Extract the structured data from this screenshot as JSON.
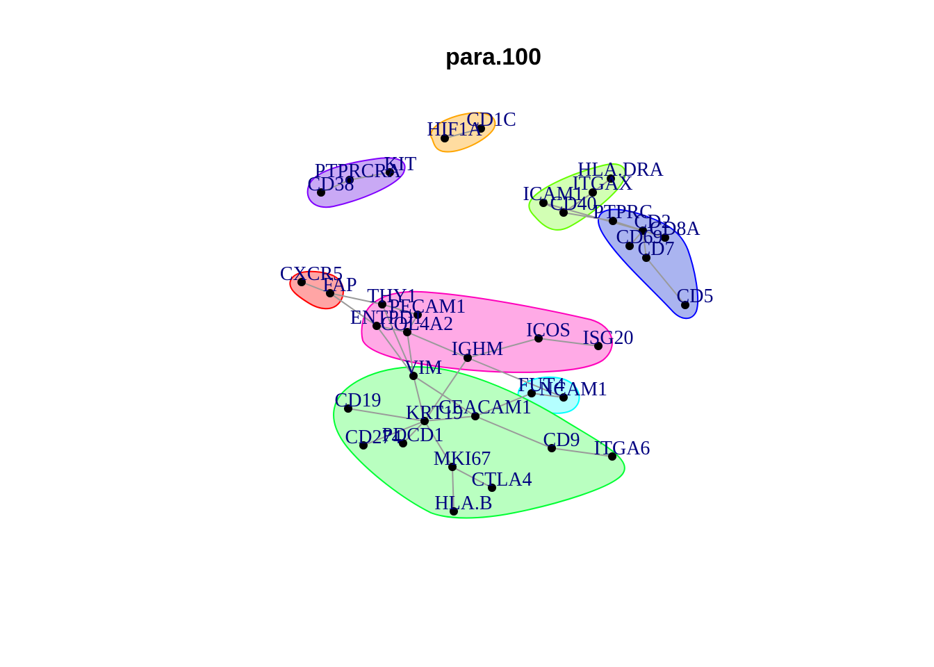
{
  "title": "para.100",
  "colors": {
    "edge": "#9a9a9a",
    "node": "#000000",
    "label": "#000080"
  },
  "clusters": [
    {
      "id": "orange",
      "stroke": "#FFA500",
      "fill": "#FFDCA0"
    },
    {
      "id": "purple",
      "stroke": "#8000FF",
      "fill": "#C9A9F5"
    },
    {
      "id": "lime",
      "stroke": "#66FF00",
      "fill": "#D2FFB4"
    },
    {
      "id": "blue",
      "stroke": "#0000FF",
      "fill": "#AAB4F0"
    },
    {
      "id": "red",
      "stroke": "#FF0000",
      "fill": "#FFA5A5"
    },
    {
      "id": "magenta",
      "stroke": "#FF00BB",
      "fill": "#FFAAE6"
    },
    {
      "id": "cyan",
      "stroke": "#00FFFF",
      "fill": "#B4FFFF"
    },
    {
      "id": "green",
      "stroke": "#00FF33",
      "fill": "#B9FFC0"
    }
  ],
  "nodes": [
    {
      "id": "HIF1A",
      "label": "HIF1A"
    },
    {
      "id": "CD1C",
      "label": "CD1C"
    },
    {
      "id": "PTPRCRA",
      "label": "PTPRCRA"
    },
    {
      "id": "KIT",
      "label": "KIT"
    },
    {
      "id": "CD38",
      "label": "CD38"
    },
    {
      "id": "HLA.DRA",
      "label": "HLA.DRA"
    },
    {
      "id": "ITGAX",
      "label": "ITGAX"
    },
    {
      "id": "ICAM1",
      "label": "ICAM1"
    },
    {
      "id": "CD40",
      "label": "CD40"
    },
    {
      "id": "PTPRC",
      "label": "PTPRC"
    },
    {
      "id": "CD2",
      "label": "CD2"
    },
    {
      "id": "CD8A",
      "label": "CD8A"
    },
    {
      "id": "CD69",
      "label": "CD69"
    },
    {
      "id": "CD7",
      "label": "CD7"
    },
    {
      "id": "CD5",
      "label": "CD5"
    },
    {
      "id": "CXCR5",
      "label": "CXCR5"
    },
    {
      "id": "FAP",
      "label": "FAP"
    },
    {
      "id": "THY1",
      "label": "THY1"
    },
    {
      "id": "PECAM1",
      "label": "PECAM1"
    },
    {
      "id": "ENTPD1",
      "label": "ENTPD1"
    },
    {
      "id": "COL4A2",
      "label": "COL4A2"
    },
    {
      "id": "ICOS",
      "label": "ICOS"
    },
    {
      "id": "ISG20",
      "label": "ISG20"
    },
    {
      "id": "IGHM",
      "label": "IGHM"
    },
    {
      "id": "VIM",
      "label": "VIM"
    },
    {
      "id": "FUT4",
      "label": "FUT4"
    },
    {
      "id": "NCAM1",
      "label": "NCAM1"
    },
    {
      "id": "CD19",
      "label": "CD19"
    },
    {
      "id": "KRT19",
      "label": "KRT19"
    },
    {
      "id": "CEACAM1",
      "label": "CEACAM1"
    },
    {
      "id": "CD274",
      "label": "CD274"
    },
    {
      "id": "PDCD1",
      "label": "PDCD1"
    },
    {
      "id": "CD9",
      "label": "CD9"
    },
    {
      "id": "ITGA6",
      "label": "ITGA6"
    },
    {
      "id": "MKI67",
      "label": "MKI67"
    },
    {
      "id": "CTLA4",
      "label": "CTLA4"
    },
    {
      "id": "HLA.B",
      "label": "HLA.B"
    }
  ],
  "edges": [
    [
      "HIF1A",
      "CD1C"
    ],
    [
      "CD38",
      "PTPRCRA"
    ],
    [
      "PTPRCRA",
      "KIT"
    ],
    [
      "HLA.DRA",
      "ITGAX"
    ],
    [
      "ITGAX",
      "CD40"
    ],
    [
      "ICAM1",
      "CD40"
    ],
    [
      "ICAM1",
      "CD2"
    ],
    [
      "CD40",
      "PTPRC"
    ],
    [
      "PTPRC",
      "CD2"
    ],
    [
      "PTPRC",
      "CD8A"
    ],
    [
      "CD2",
      "CD8A"
    ],
    [
      "CD2",
      "CD69"
    ],
    [
      "CD2",
      "CD7"
    ],
    [
      "CD7",
      "CD5"
    ],
    [
      "CXCR5",
      "FAP"
    ],
    [
      "FAP",
      "THY1"
    ],
    [
      "FAP",
      "ENTPD1"
    ],
    [
      "THY1",
      "PECAM1"
    ],
    [
      "THY1",
      "VIM"
    ],
    [
      "PECAM1",
      "COL4A2"
    ],
    [
      "ENTPD1",
      "COL4A2"
    ],
    [
      "ENTPD1",
      "VIM"
    ],
    [
      "COL4A2",
      "IGHM"
    ],
    [
      "COL4A2",
      "VIM"
    ],
    [
      "ICOS",
      "ISG20"
    ],
    [
      "ICOS",
      "IGHM"
    ],
    [
      "IGHM",
      "KRT19"
    ],
    [
      "IGHM",
      "NCAM1"
    ],
    [
      "VIM",
      "KRT19"
    ],
    [
      "VIM",
      "CEACAM1"
    ],
    [
      "FUT4",
      "NCAM1"
    ],
    [
      "FUT4",
      "CEACAM1"
    ],
    [
      "CD19",
      "KRT19"
    ],
    [
      "KRT19",
      "CEACAM1"
    ],
    [
      "KRT19",
      "CD274"
    ],
    [
      "KRT19",
      "PDCD1"
    ],
    [
      "KRT19",
      "MKI67"
    ],
    [
      "CEACAM1",
      "CD9"
    ],
    [
      "CD9",
      "ITGA6"
    ],
    [
      "MKI67",
      "CTLA4"
    ],
    [
      "MKI67",
      "HLA.B"
    ]
  ]
}
